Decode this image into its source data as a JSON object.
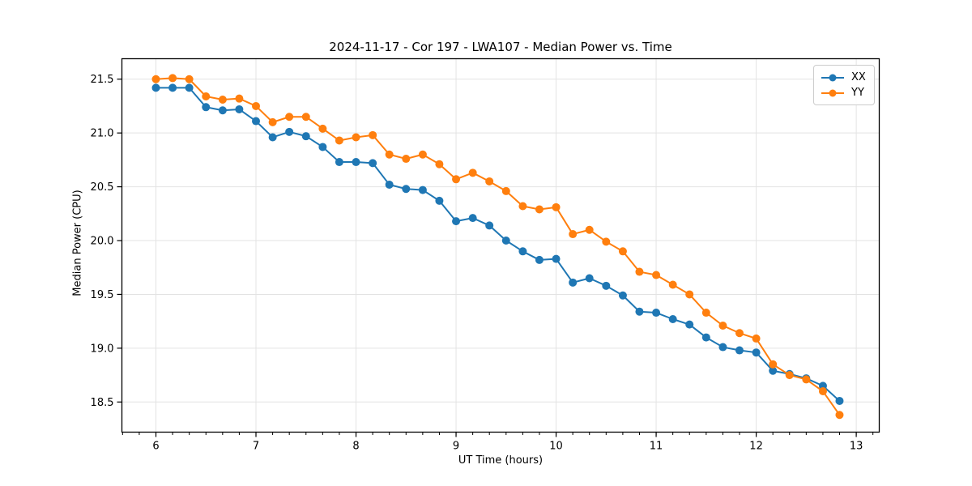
{
  "chart_data": {
    "type": "line",
    "title": "2024-11-17 - Cor 197 - LWA107 - Median Power vs. Time",
    "xlabel": "UT Time (hours)",
    "ylabel": "Median Power (CPU)",
    "xlim": [
      5.66,
      13.23
    ],
    "ylim": [
      18.22,
      21.69
    ],
    "x_major_ticks": [
      6,
      7,
      8,
      9,
      10,
      11,
      12,
      13
    ],
    "x_minor_tick_interval": 0.166667,
    "y_major_ticks": [
      18.5,
      19.0,
      19.5,
      20.0,
      20.5,
      21.0,
      21.5
    ],
    "grid": "major-both-light",
    "legend_position": "upper-right",
    "background_color": "#ffffff",
    "grid_color": "#e3e3e3",
    "x": [
      6.0,
      6.167,
      6.333,
      6.5,
      6.667,
      6.833,
      7.0,
      7.167,
      7.333,
      7.5,
      7.667,
      7.833,
      8.0,
      8.167,
      8.333,
      8.5,
      8.667,
      8.833,
      9.0,
      9.167,
      9.333,
      9.5,
      9.667,
      9.833,
      10.0,
      10.167,
      10.333,
      10.5,
      10.667,
      10.833,
      11.0,
      11.167,
      11.333,
      11.5,
      11.667,
      11.833,
      12.0,
      12.167,
      12.333,
      12.5,
      12.667,
      12.833
    ],
    "series": [
      {
        "name": "XX",
        "color": "#1f77b4",
        "marker": "circle",
        "values": [
          21.42,
          21.42,
          21.42,
          21.24,
          21.21,
          21.22,
          21.11,
          20.96,
          21.01,
          20.97,
          20.87,
          20.73,
          20.73,
          20.72,
          20.52,
          20.48,
          20.47,
          20.37,
          20.18,
          20.21,
          20.14,
          20.0,
          19.9,
          19.82,
          19.83,
          19.61,
          19.65,
          19.58,
          19.49,
          19.34,
          19.33,
          19.27,
          19.22,
          19.1,
          19.01,
          18.98,
          18.96,
          18.79,
          18.76,
          18.72,
          18.65,
          18.51
        ]
      },
      {
        "name": "YY",
        "color": "#ff7f0e",
        "marker": "circle",
        "values": [
          21.5,
          21.51,
          21.5,
          21.34,
          21.31,
          21.32,
          21.25,
          21.1,
          21.15,
          21.15,
          21.04,
          20.93,
          20.96,
          20.98,
          20.8,
          20.76,
          20.8,
          20.71,
          20.57,
          20.63,
          20.55,
          20.46,
          20.32,
          20.29,
          20.31,
          20.06,
          20.1,
          19.99,
          19.9,
          19.71,
          19.68,
          19.59,
          19.5,
          19.33,
          19.21,
          19.14,
          19.09,
          18.85,
          18.75,
          18.71,
          18.6,
          18.38
        ]
      }
    ]
  }
}
